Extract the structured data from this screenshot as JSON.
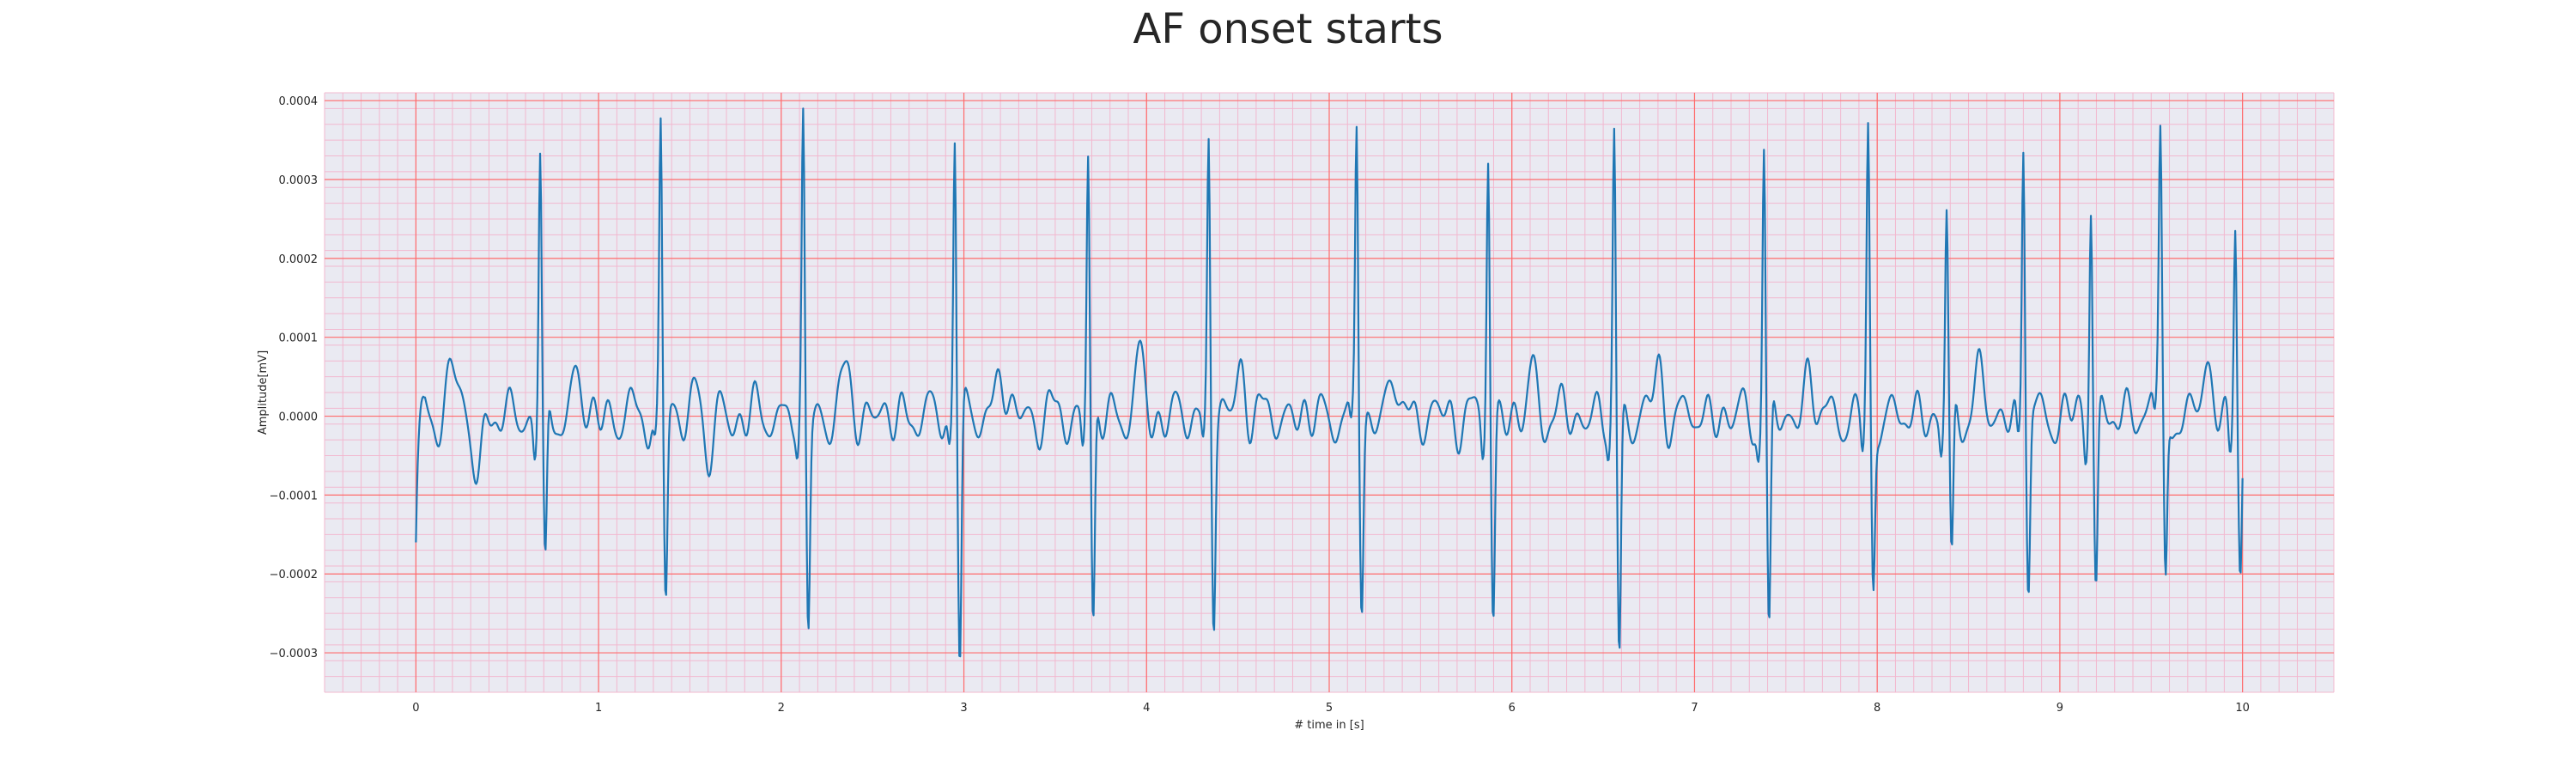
{
  "chart_data": {
    "type": "line",
    "title": "AF onset starts",
    "xlabel": "# time in [s]",
    "ylabel": "Amplitude[mV]",
    "xlim": [
      -0.5,
      10.5
    ],
    "ylim": [
      -0.00035,
      0.00041
    ],
    "xticks": [
      0,
      1,
      2,
      3,
      4,
      5,
      6,
      7,
      8,
      9,
      10
    ],
    "xtick_labels": [
      "0",
      "1",
      "2",
      "3",
      "4",
      "5",
      "6",
      "7",
      "8",
      "9",
      "10"
    ],
    "yticks": [
      -0.0003,
      -0.0002,
      -0.0001,
      0.0,
      0.0001,
      0.0002,
      0.0003,
      0.0004
    ],
    "ytick_labels": [
      "−0.0003",
      "−0.0002",
      "−0.0001",
      "0.0000",
      "0.0001",
      "0.0002",
      "0.0003",
      "0.0004"
    ],
    "grid": true,
    "minor_grid": true,
    "colors": {
      "line": "#1f77b4",
      "background": "#eaeaf2",
      "major_grid": "#ff6b6b",
      "minor_grid": "#f2b8cf"
    },
    "series": [
      {
        "beats": [
          {
            "t": 0.0,
            "peak": -0.00016,
            "trough": 0.0
          },
          {
            "t": 0.68,
            "peak": 0.000333,
            "trough": -0.000222
          },
          {
            "t": 1.34,
            "peak": 0.000373,
            "trough": -0.000233
          },
          {
            "t": 2.12,
            "peak": 0.000366,
            "trough": -0.000268
          },
          {
            "t": 2.95,
            "peak": 0.000375,
            "trough": -0.00032
          },
          {
            "t": 3.68,
            "peak": 0.00034,
            "trough": -0.000277
          },
          {
            "t": 4.34,
            "peak": 0.000356,
            "trough": -0.000242
          },
          {
            "t": 5.15,
            "peak": 0.000365,
            "trough": -0.00023
          },
          {
            "t": 5.87,
            "peak": 0.00034,
            "trough": -0.000261
          },
          {
            "t": 6.56,
            "peak": 0.000356,
            "trough": -0.000316
          },
          {
            "t": 7.38,
            "peak": 0.000347,
            "trough": -0.000298
          },
          {
            "t": 7.95,
            "peak": 0.000348,
            "trough": -0.000218
          },
          {
            "t": 8.38,
            "peak": 0.00026,
            "trough": -0.000209
          },
          {
            "t": 8.8,
            "peak": 0.000364,
            "trough": -0.000218
          },
          {
            "t": 9.17,
            "peak": 0.000284,
            "trough": -0.00022
          },
          {
            "t": 9.55,
            "peak": 0.000304,
            "trough": -0.000233
          },
          {
            "t": 9.96,
            "peak": 0.000264,
            "trough": -0.000198
          }
        ],
        "baseline_waves": [
          {
            "t": 0.2,
            "v": 6.5e-05
          },
          {
            "t": 0.34,
            "v": -7e-05
          },
          {
            "t": 0.88,
            "v": 5e-05
          },
          {
            "t": 1.55,
            "v": 4.5e-05
          },
          {
            "t": 1.6,
            "v": -6e-05
          },
          {
            "t": 2.36,
            "v": 5.5e-05
          },
          {
            "t": 3.2,
            "v": 6e-05
          },
          {
            "t": 3.96,
            "v": 6.5e-05
          },
          {
            "t": 4.52,
            "v": 6e-05
          },
          {
            "t": 5.36,
            "v": 5e-05
          },
          {
            "t": 6.12,
            "v": 5e-05
          },
          {
            "t": 6.8,
            "v": 5.5e-05
          },
          {
            "t": 7.63,
            "v": 5e-05
          },
          {
            "t": 8.55,
            "v": 5.5e-05
          },
          {
            "t": 9.52,
            "v": 6e-05
          },
          {
            "t": 9.8,
            "v": 6.5e-05
          }
        ]
      }
    ]
  }
}
